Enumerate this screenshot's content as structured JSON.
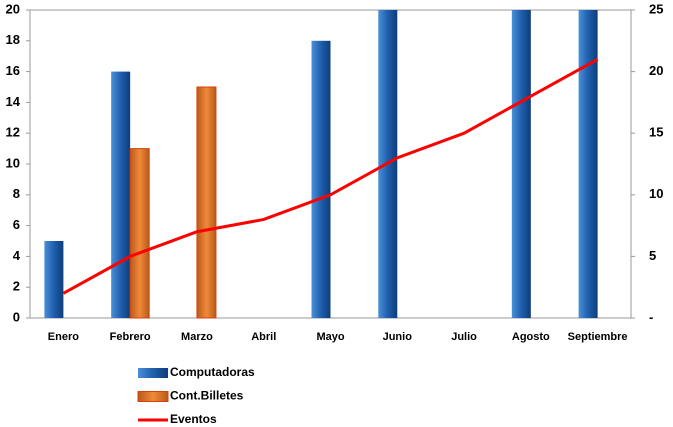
{
  "chart_data": {
    "type": "bar",
    "categories": [
      "Enero",
      "Febrero",
      "Marzo",
      "Abril",
      "Mayo",
      "Junio",
      "Julio",
      "Agosto",
      "Septiembre"
    ],
    "series": [
      {
        "name": "Computadoras",
        "color": "#1f5fad",
        "values": [
          5,
          16,
          null,
          null,
          18,
          20,
          null,
          20,
          20
        ]
      },
      {
        "name": "Cont.Billetes",
        "color": "#e8742a",
        "values": [
          null,
          11,
          15,
          null,
          null,
          null,
          null,
          null,
          null
        ]
      },
      {
        "name": "Eventos",
        "type": "line",
        "axis": "y2",
        "color": "#ff0000",
        "values": [
          2,
          5,
          7,
          8,
          10,
          13,
          15,
          18,
          21
        ]
      }
    ],
    "ylim": [
      0,
      20
    ],
    "yticks": [
      0,
      2,
      4,
      6,
      8,
      10,
      12,
      14,
      16,
      18,
      20
    ],
    "y2lim": [
      0,
      25
    ],
    "y2ticks": [
      {
        "value": 0,
        "label": "-"
      },
      5,
      10,
      15,
      20,
      25
    ],
    "legend": "bottom-left"
  }
}
